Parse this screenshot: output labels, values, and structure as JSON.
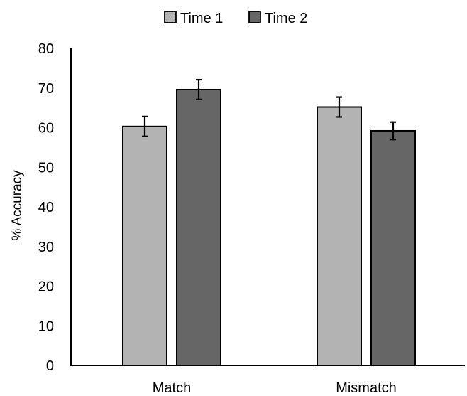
{
  "chart_data": {
    "type": "bar",
    "categories": [
      "Match",
      "Mismatch"
    ],
    "series": [
      {
        "name": "Time 1",
        "values": [
          60.3,
          65.2
        ],
        "errors": [
          2.5,
          2.5
        ],
        "color": "#b3b3b3"
      },
      {
        "name": "Time 2",
        "values": [
          69.6,
          59.2
        ],
        "errors": [
          2.5,
          2.2
        ],
        "color": "#666666"
      }
    ],
    "title": "",
    "xlabel": "",
    "ylabel": "% Accuracy",
    "ylim": [
      0,
      80
    ],
    "yticks": [
      0,
      10,
      20,
      30,
      40,
      50,
      60,
      70,
      80
    ],
    "grid": false,
    "legend_position": "top-center"
  }
}
